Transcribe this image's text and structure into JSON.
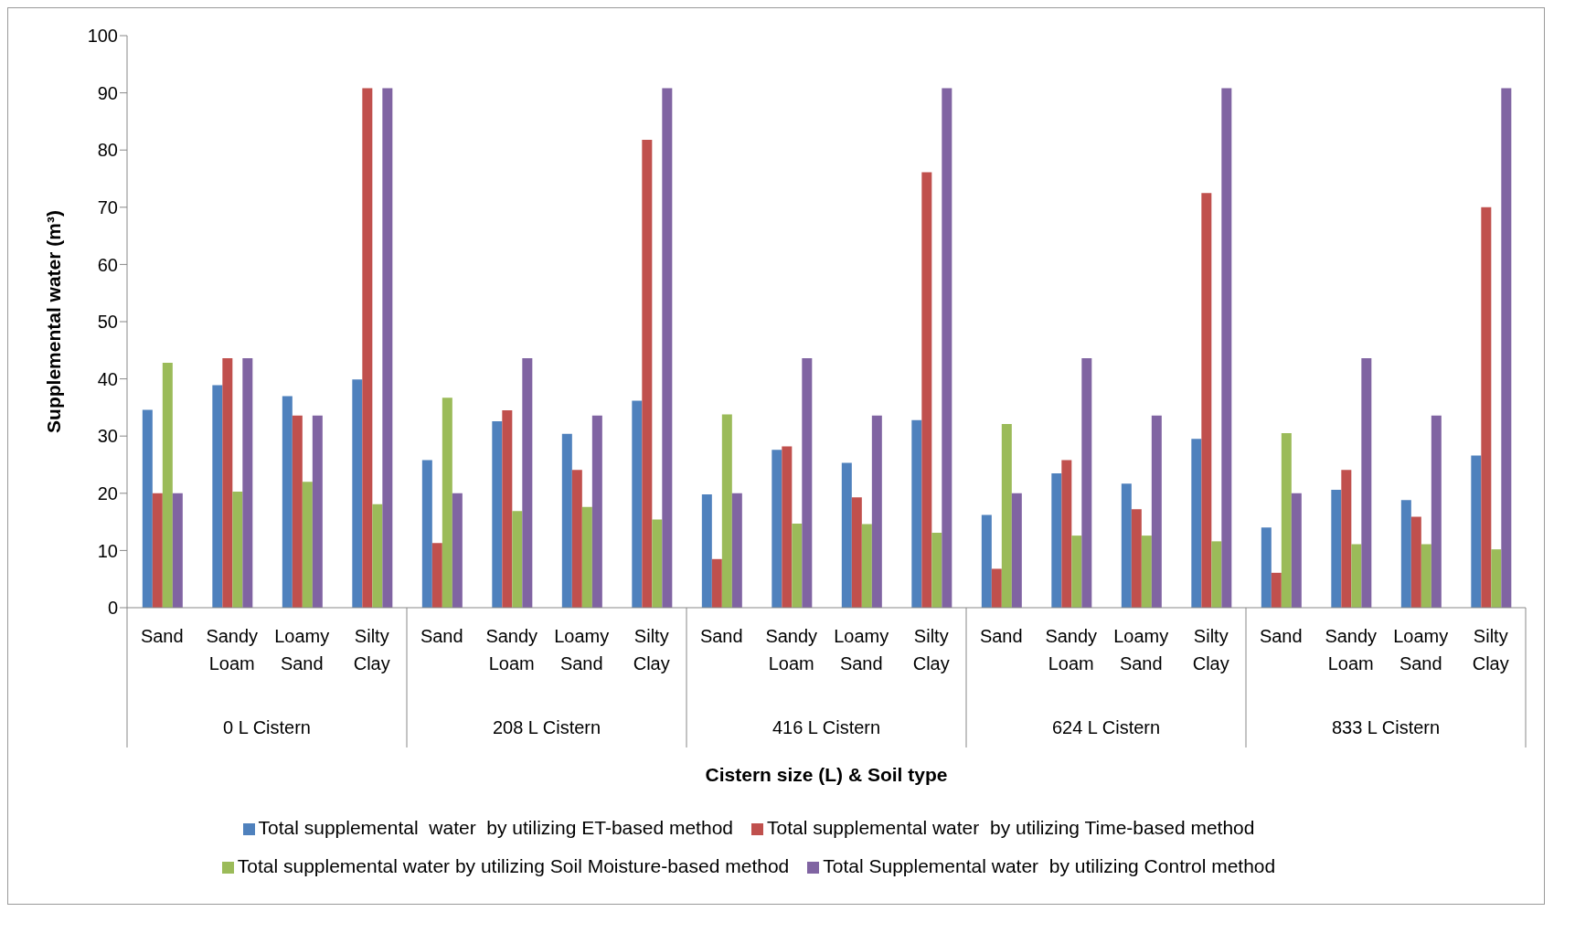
{
  "chart_data": {
    "type": "bar",
    "xlabel": "Cistern size (L) & Soil type",
    "ylabel": "Supplemental water (m³)",
    "categories": [
      "Sand",
      "Sandy Loam",
      "Loamy Sand",
      "Silty Clay",
      "Sand",
      "Sandy Loam",
      "Loamy Sand",
      "Silty Clay",
      "Sand",
      "Sandy Loam",
      "Loamy Sand",
      "Silty Clay",
      "Sand",
      "Sandy Loam",
      "Loamy Sand",
      "Silty Clay",
      "Sand",
      "Sandy Loam",
      "Loamy Sand",
      "Silty Clay"
    ],
    "annotations": [
      "0 L Cistern",
      "208 L Cistern",
      "416 L Cistern",
      "624 L Cistern",
      "833 L Cistern"
    ],
    "series": [
      {
        "name": "Total supplemental  water  by utilizing ET-based method",
        "color": "#4f81bd",
        "values": [
          34.6,
          38.9,
          37.0,
          39.9,
          25.8,
          32.6,
          30.4,
          36.2,
          19.8,
          27.6,
          25.3,
          32.8,
          16.2,
          23.5,
          21.7,
          29.5,
          14.0,
          20.6,
          18.8,
          26.6
        ]
      },
      {
        "name": "Total supplemental water  by utilizing Time-based method",
        "color": "#c0504d",
        "values": [
          20,
          43.6,
          33.6,
          90.8,
          11.3,
          34.5,
          24.1,
          81.8,
          8.5,
          28.2,
          19.3,
          76.1,
          6.8,
          25.8,
          17.2,
          72.5,
          6.1,
          24.1,
          15.9,
          70.0
        ]
      },
      {
        "name": "Total supplemental water by utilizing Soil Moisture-based method",
        "color": "#9bbb59",
        "values": [
          42.8,
          20.3,
          22.0,
          18.1,
          36.7,
          16.9,
          17.6,
          15.4,
          33.8,
          14.7,
          14.6,
          13.1,
          32.1,
          12.6,
          12.6,
          11.6,
          30.5,
          11.1,
          11.1,
          10.2
        ]
      },
      {
        "name": "Total Supplemental water  by utilizing Control method",
        "color": "#8064a2",
        "values": [
          20,
          43.6,
          33.6,
          90.8,
          20,
          43.6,
          33.6,
          90.8,
          20,
          43.6,
          33.6,
          90.8,
          20,
          43.6,
          33.6,
          90.8,
          20,
          43.6,
          33.6,
          90.8
        ]
      }
    ],
    "ylim": [
      0,
      100
    ],
    "yticks": [
      0,
      10,
      20,
      30,
      40,
      50,
      60,
      70,
      80,
      90,
      100
    ],
    "grid": false,
    "legend": "bottom"
  }
}
